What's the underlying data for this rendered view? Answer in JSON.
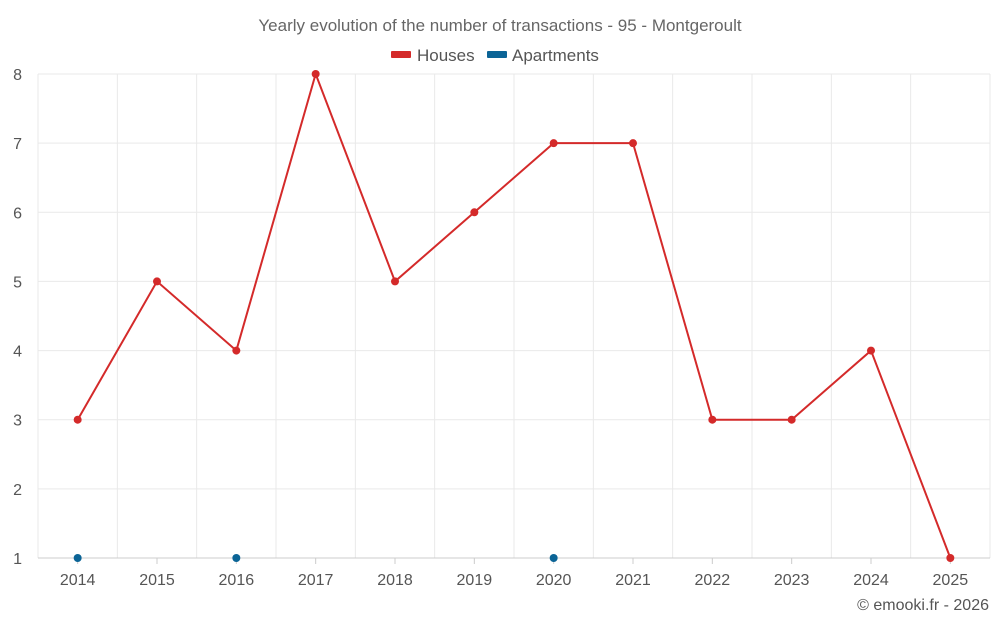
{
  "chart_data": {
    "type": "line",
    "title": "Yearly evolution of the number of transactions - 95 - Montgeroult",
    "categories": [
      "2014",
      "2015",
      "2016",
      "2017",
      "2018",
      "2019",
      "2020",
      "2021",
      "2022",
      "2023",
      "2024",
      "2025"
    ],
    "ylim": [
      1,
      8
    ],
    "yticks": [
      "1",
      "2",
      "3",
      "4",
      "5",
      "6",
      "7",
      "8"
    ],
    "grid": true,
    "legend_position": "top-center",
    "series": [
      {
        "name": "Houses",
        "color": "#d42a2a",
        "values": [
          3,
          5,
          4,
          8,
          5,
          6,
          7,
          7,
          3,
          3,
          4,
          1
        ]
      },
      {
        "name": "Apartments",
        "color": "#0b6496",
        "values": [
          1,
          null,
          1,
          null,
          null,
          null,
          1,
          null,
          null,
          null,
          null,
          null
        ]
      }
    ],
    "credit": "© emooki.fr - 2026"
  }
}
